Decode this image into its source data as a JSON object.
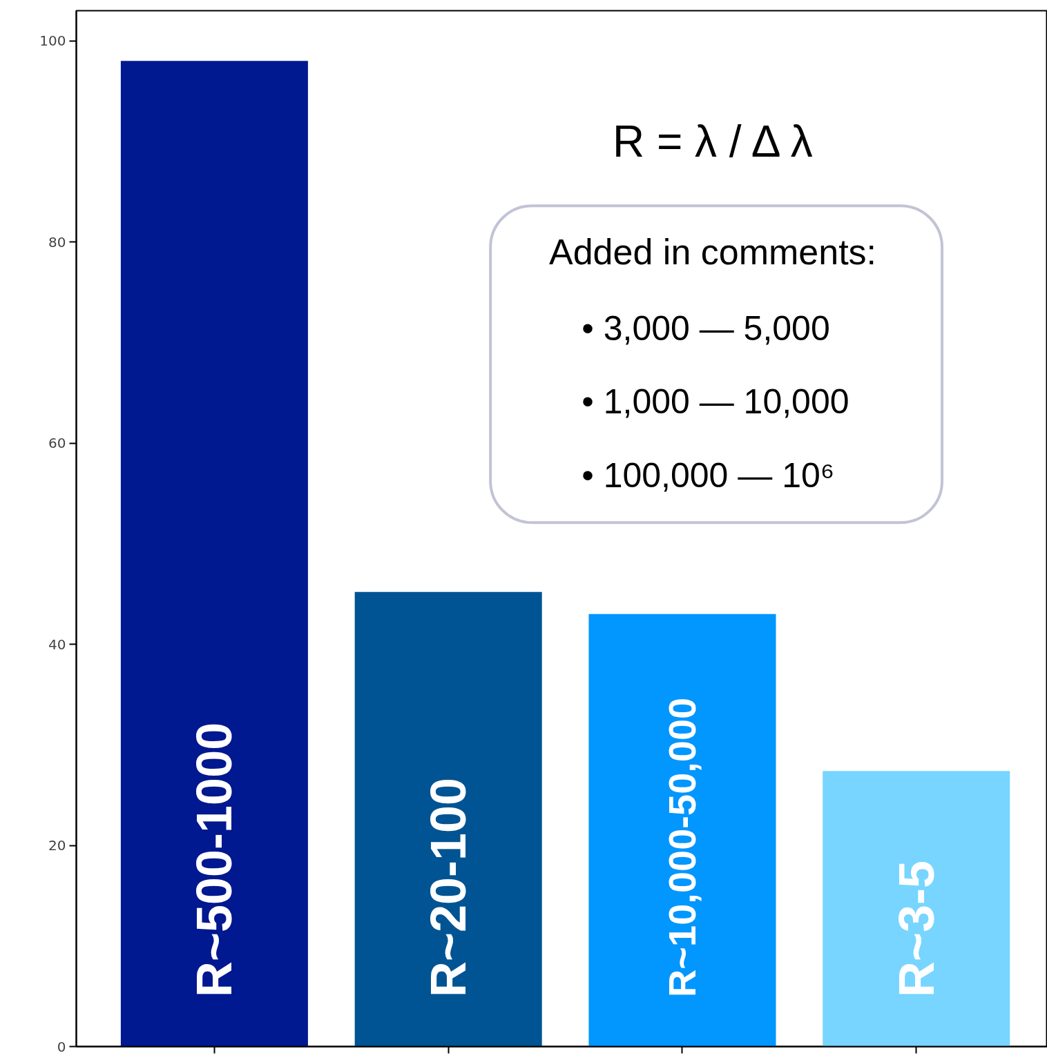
{
  "chart_data": {
    "type": "bar",
    "categories": [
      "R~500-1000",
      "R~20-100",
      "R~10,000-50,000",
      "R~3-5"
    ],
    "values": [
      98.0,
      45.2,
      43.0,
      27.4
    ],
    "colors": [
      "#001890",
      "#015493",
      "#0296ff",
      "#77d5ff"
    ],
    "ylim": [
      0,
      103
    ],
    "yticks": [
      0,
      20,
      40,
      60,
      80,
      100
    ],
    "grid": false,
    "tick_labels": "y",
    "annotations": [
      "R = λ / Δ λ",
      "Added in comments:",
      "• 3,000 — 5,000",
      "• 1,000 — 10,000",
      "• 100,000 — 10⁶"
    ]
  }
}
